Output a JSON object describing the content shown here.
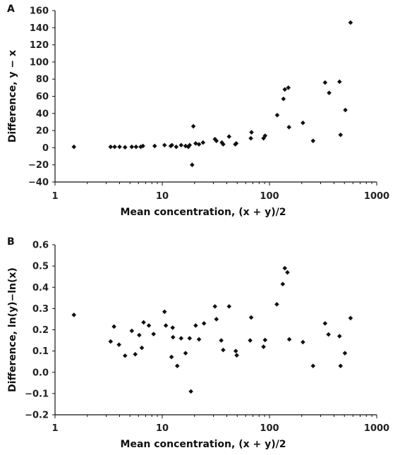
{
  "chart_data": [
    {
      "panel": "A",
      "type": "scatter",
      "xlabel": "Mean concentration, (x + y)/2",
      "ylabel": "Difference, y − x",
      "xscale": "log",
      "xlim": [
        1,
        1000
      ],
      "ylim": [
        -40,
        160
      ],
      "xticks": [
        "1",
        "10",
        "100",
        "1000"
      ],
      "yticks": [
        "−40",
        "−20",
        "0",
        "20",
        "40",
        "60",
        "80",
        "100",
        "120",
        "140",
        "160"
      ],
      "grid": false,
      "points": [
        [
          1.5,
          1
        ],
        [
          3.3,
          1
        ],
        [
          3.6,
          1
        ],
        [
          4,
          1
        ],
        [
          4.5,
          0.5
        ],
        [
          5.2,
          1
        ],
        [
          5.7,
          1
        ],
        [
          6.3,
          1
        ],
        [
          6.6,
          2
        ],
        [
          8.5,
          2
        ],
        [
          10.5,
          3
        ],
        [
          12,
          2
        ],
        [
          12.3,
          3
        ],
        [
          13.5,
          1
        ],
        [
          15,
          3
        ],
        [
          16.5,
          2
        ],
        [
          17.5,
          1
        ],
        [
          18,
          3
        ],
        [
          19,
          -20
        ],
        [
          19.5,
          25
        ],
        [
          20.5,
          5
        ],
        [
          22,
          4
        ],
        [
          24,
          6
        ],
        [
          31,
          10
        ],
        [
          32,
          8
        ],
        [
          36,
          6
        ],
        [
          37,
          4
        ],
        [
          42,
          13
        ],
        [
          48,
          4
        ],
        [
          49,
          5
        ],
        [
          67,
          11
        ],
        [
          68,
          18
        ],
        [
          88,
          11
        ],
        [
          91,
          14
        ],
        [
          118,
          38
        ],
        [
          135,
          57
        ],
        [
          139,
          68
        ],
        [
          150,
          70
        ],
        [
          152,
          24
        ],
        [
          205,
          29
        ],
        [
          255,
          8
        ],
        [
          330,
          76
        ],
        [
          360,
          64
        ],
        [
          450,
          77
        ],
        [
          460,
          15
        ],
        [
          510,
          44
        ],
        [
          570,
          146
        ]
      ]
    },
    {
      "panel": "B",
      "type": "scatter",
      "xlabel": "Mean concentration, (x + y)/2",
      "ylabel": "Difference, ln(y)−ln(x)",
      "xscale": "log",
      "xlim": [
        1,
        1000
      ],
      "ylim": [
        -0.2,
        0.6
      ],
      "xticks": [
        "1",
        "10",
        "100",
        "1000"
      ],
      "yticks": [
        "−0.2",
        "−0.1",
        "0.0",
        "0.1",
        "0.2",
        "0.3",
        "0.4",
        "0.5",
        "0.6"
      ],
      "grid": false,
      "points": [
        [
          1.5,
          0.27
        ],
        [
          3.3,
          0.145
        ],
        [
          3.55,
          0.215
        ],
        [
          3.95,
          0.13
        ],
        [
          4.5,
          0.078
        ],
        [
          5.2,
          0.195
        ],
        [
          5.6,
          0.085
        ],
        [
          6.1,
          0.175
        ],
        [
          6.45,
          0.115
        ],
        [
          6.7,
          0.235
        ],
        [
          7.5,
          0.22
        ],
        [
          8.3,
          0.18
        ],
        [
          10.5,
          0.285
        ],
        [
          10.8,
          0.22
        ],
        [
          12.2,
          0.072
        ],
        [
          12.5,
          0.21
        ],
        [
          12.6,
          0.165
        ],
        [
          13.8,
          0.03
        ],
        [
          15,
          0.16
        ],
        [
          16.5,
          0.09
        ],
        [
          18,
          0.16
        ],
        [
          18.5,
          -0.09
        ],
        [
          20.5,
          0.22
        ],
        [
          22,
          0.155
        ],
        [
          24.5,
          0.23
        ],
        [
          31,
          0.31
        ],
        [
          32,
          0.25
        ],
        [
          35.5,
          0.15
        ],
        [
          37,
          0.105
        ],
        [
          42,
          0.31
        ],
        [
          48.5,
          0.1
        ],
        [
          49.5,
          0.08
        ],
        [
          66,
          0.15
        ],
        [
          67.5,
          0.258
        ],
        [
          88,
          0.12
        ],
        [
          91,
          0.152
        ],
        [
          117,
          0.32
        ],
        [
          133,
          0.415
        ],
        [
          139,
          0.49
        ],
        [
          147,
          0.47
        ],
        [
          153,
          0.155
        ],
        [
          205,
          0.142
        ],
        [
          255,
          0.03
        ],
        [
          330,
          0.23
        ],
        [
          355,
          0.178
        ],
        [
          450,
          0.17
        ],
        [
          460,
          0.03
        ],
        [
          505,
          0.09
        ],
        [
          570,
          0.255
        ]
      ]
    }
  ]
}
